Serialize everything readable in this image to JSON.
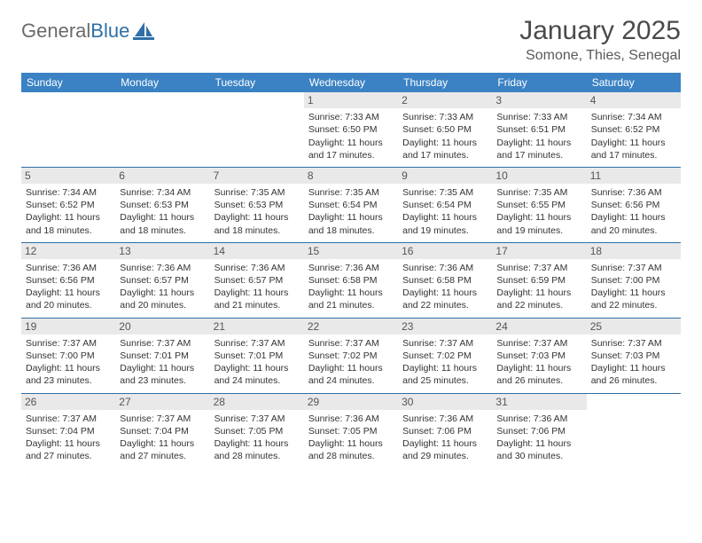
{
  "logo": {
    "word1": "General",
    "word2": "Blue"
  },
  "title": "January 2025",
  "location": "Somone, Thies, Senegal",
  "colors": {
    "header_bg": "#3b82c4",
    "header_text": "#ffffff",
    "rule": "#2f6fa7",
    "daynum_bg": "#e9e9e9",
    "logo_gray": "#6b6b6b",
    "logo_blue": "#2f6fa7"
  },
  "weekdays": [
    "Sunday",
    "Monday",
    "Tuesday",
    "Wednesday",
    "Thursday",
    "Friday",
    "Saturday"
  ],
  "weeks": [
    [
      null,
      null,
      null,
      {
        "n": "1",
        "sr": "7:33 AM",
        "ss": "6:50 PM",
        "dl": "11 hours and 17 minutes."
      },
      {
        "n": "2",
        "sr": "7:33 AM",
        "ss": "6:50 PM",
        "dl": "11 hours and 17 minutes."
      },
      {
        "n": "3",
        "sr": "7:33 AM",
        "ss": "6:51 PM",
        "dl": "11 hours and 17 minutes."
      },
      {
        "n": "4",
        "sr": "7:34 AM",
        "ss": "6:52 PM",
        "dl": "11 hours and 17 minutes."
      }
    ],
    [
      {
        "n": "5",
        "sr": "7:34 AM",
        "ss": "6:52 PM",
        "dl": "11 hours and 18 minutes."
      },
      {
        "n": "6",
        "sr": "7:34 AM",
        "ss": "6:53 PM",
        "dl": "11 hours and 18 minutes."
      },
      {
        "n": "7",
        "sr": "7:35 AM",
        "ss": "6:53 PM",
        "dl": "11 hours and 18 minutes."
      },
      {
        "n": "8",
        "sr": "7:35 AM",
        "ss": "6:54 PM",
        "dl": "11 hours and 18 minutes."
      },
      {
        "n": "9",
        "sr": "7:35 AM",
        "ss": "6:54 PM",
        "dl": "11 hours and 19 minutes."
      },
      {
        "n": "10",
        "sr": "7:35 AM",
        "ss": "6:55 PM",
        "dl": "11 hours and 19 minutes."
      },
      {
        "n": "11",
        "sr": "7:36 AM",
        "ss": "6:56 PM",
        "dl": "11 hours and 20 minutes."
      }
    ],
    [
      {
        "n": "12",
        "sr": "7:36 AM",
        "ss": "6:56 PM",
        "dl": "11 hours and 20 minutes."
      },
      {
        "n": "13",
        "sr": "7:36 AM",
        "ss": "6:57 PM",
        "dl": "11 hours and 20 minutes."
      },
      {
        "n": "14",
        "sr": "7:36 AM",
        "ss": "6:57 PM",
        "dl": "11 hours and 21 minutes."
      },
      {
        "n": "15",
        "sr": "7:36 AM",
        "ss": "6:58 PM",
        "dl": "11 hours and 21 minutes."
      },
      {
        "n": "16",
        "sr": "7:36 AM",
        "ss": "6:58 PM",
        "dl": "11 hours and 22 minutes."
      },
      {
        "n": "17",
        "sr": "7:37 AM",
        "ss": "6:59 PM",
        "dl": "11 hours and 22 minutes."
      },
      {
        "n": "18",
        "sr": "7:37 AM",
        "ss": "7:00 PM",
        "dl": "11 hours and 22 minutes."
      }
    ],
    [
      {
        "n": "19",
        "sr": "7:37 AM",
        "ss": "7:00 PM",
        "dl": "11 hours and 23 minutes."
      },
      {
        "n": "20",
        "sr": "7:37 AM",
        "ss": "7:01 PM",
        "dl": "11 hours and 23 minutes."
      },
      {
        "n": "21",
        "sr": "7:37 AM",
        "ss": "7:01 PM",
        "dl": "11 hours and 24 minutes."
      },
      {
        "n": "22",
        "sr": "7:37 AM",
        "ss": "7:02 PM",
        "dl": "11 hours and 24 minutes."
      },
      {
        "n": "23",
        "sr": "7:37 AM",
        "ss": "7:02 PM",
        "dl": "11 hours and 25 minutes."
      },
      {
        "n": "24",
        "sr": "7:37 AM",
        "ss": "7:03 PM",
        "dl": "11 hours and 26 minutes."
      },
      {
        "n": "25",
        "sr": "7:37 AM",
        "ss": "7:03 PM",
        "dl": "11 hours and 26 minutes."
      }
    ],
    [
      {
        "n": "26",
        "sr": "7:37 AM",
        "ss": "7:04 PM",
        "dl": "11 hours and 27 minutes."
      },
      {
        "n": "27",
        "sr": "7:37 AM",
        "ss": "7:04 PM",
        "dl": "11 hours and 27 minutes."
      },
      {
        "n": "28",
        "sr": "7:37 AM",
        "ss": "7:05 PM",
        "dl": "11 hours and 28 minutes."
      },
      {
        "n": "29",
        "sr": "7:36 AM",
        "ss": "7:05 PM",
        "dl": "11 hours and 28 minutes."
      },
      {
        "n": "30",
        "sr": "7:36 AM",
        "ss": "7:06 PM",
        "dl": "11 hours and 29 minutes."
      },
      {
        "n": "31",
        "sr": "7:36 AM",
        "ss": "7:06 PM",
        "dl": "11 hours and 30 minutes."
      },
      null
    ]
  ],
  "labels": {
    "sunrise": "Sunrise: ",
    "sunset": "Sunset: ",
    "daylight": "Daylight: "
  }
}
